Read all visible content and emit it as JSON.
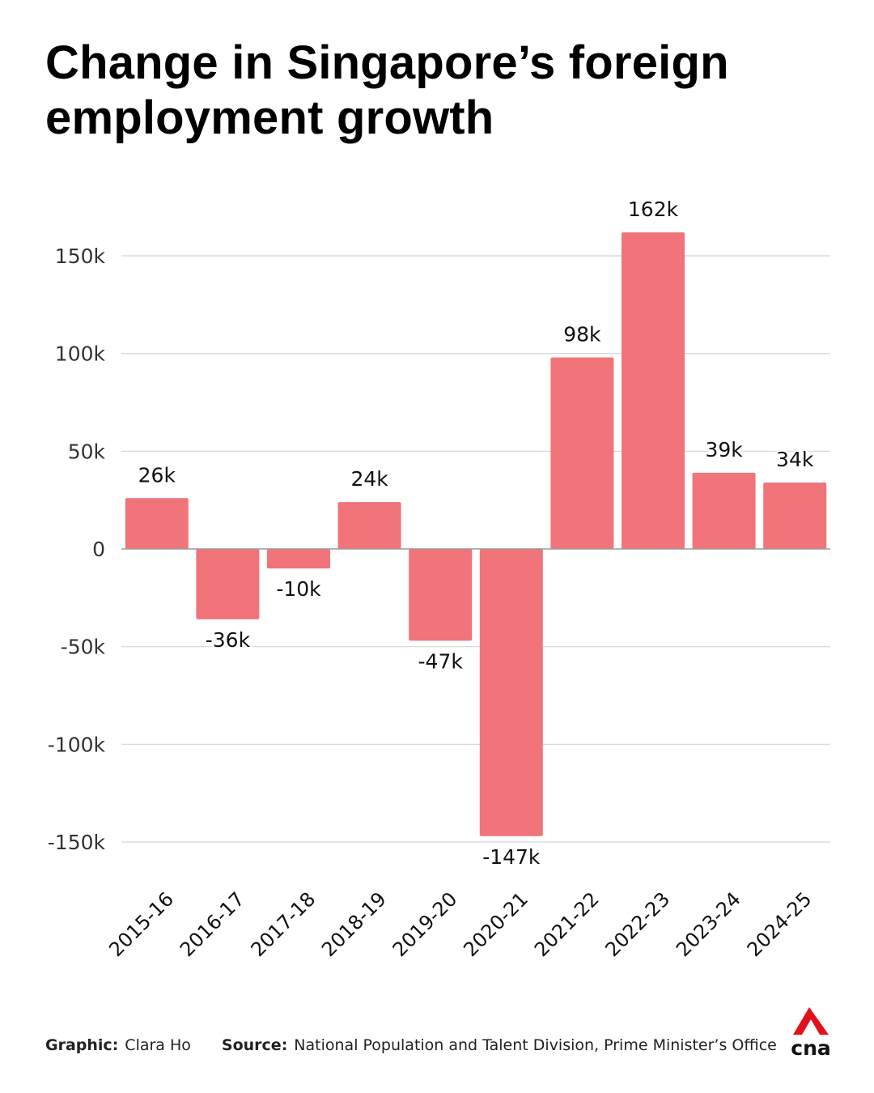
{
  "title": "Change in Singapore’s foreign employment growth",
  "footer": {
    "graphic_label": "Graphic:",
    "graphic_value": "Clara Ho",
    "source_label": "Source:",
    "source_value": "National Population and Talent Division, Prime Minister’s Office"
  },
  "logo": {
    "text": "cna",
    "accent_color": "#e3101b"
  },
  "colors": {
    "bar": "#f0747a",
    "grid": "#d4d4d4",
    "zero_line": "#9a9a9a",
    "text": "#111111"
  },
  "chart_data": {
    "type": "bar",
    "title": "Change in Singapore’s foreign employment growth",
    "xlabel": "",
    "ylabel": "",
    "categories": [
      "2015-16",
      "2016-17",
      "2017-18",
      "2018-19",
      "2019-20",
      "2020-21",
      "2021-22",
      "2022-23",
      "2023-24",
      "2024-25"
    ],
    "values": [
      26000,
      -36000,
      -10000,
      24000,
      -47000,
      -147000,
      98000,
      162000,
      39000,
      34000
    ],
    "data_labels": [
      "26k",
      "-36k",
      "-10k",
      "24k",
      "-47k",
      "-147k",
      "98k",
      "162k",
      "39k",
      "34k"
    ],
    "yticks": [
      150000,
      100000,
      50000,
      0,
      -50000,
      -100000,
      -150000
    ],
    "ytick_labels": [
      "150k",
      "100k",
      "50k",
      "0",
      "-50k",
      "-100k",
      "-150k"
    ],
    "ylim": [
      -170000,
      190000
    ],
    "grid": true,
    "legend": "none"
  }
}
